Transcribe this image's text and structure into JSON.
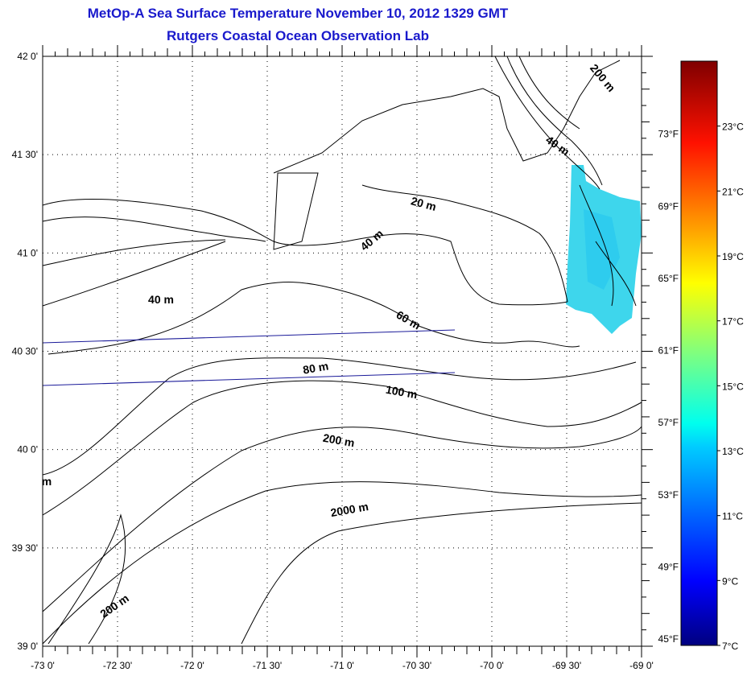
{
  "title": "MetOp-A Sea Surface Temperature November 10, 2012 1329 GMT",
  "subtitle": "Rutgers Coastal Ocean Observation Lab",
  "map": {
    "lon_range": [
      -73,
      -69
    ],
    "lat_range": [
      39,
      42
    ],
    "lon_labels": [
      "-73 0'",
      "-72 30'",
      "-72 0'",
      "-71 30'",
      "-71 0'",
      "-70 30'",
      "-70 0'",
      "-69 30'",
      "-69 0'"
    ],
    "lat_labels": [
      "39 0'",
      "39 30'",
      "40 0'",
      "40 30'",
      "41 0'",
      "41 30'",
      "42 0'"
    ],
    "contour_labels": [
      "200 m",
      "40 m",
      "20 m",
      "40 m",
      "40 m",
      "60 m",
      "80 m",
      "100 m",
      "200 m",
      "2000 m",
      "200 m",
      "m"
    ]
  },
  "colorbar": {
    "celsius_range": [
      7,
      25
    ],
    "celsius_labels": [
      "7°C",
      "9°C",
      "11°C",
      "13°C",
      "15°C",
      "17°C",
      "19°C",
      "21°C",
      "23°C"
    ],
    "fahrenheit_labels": [
      "45°F",
      "49°F",
      "53°F",
      "57°F",
      "61°F",
      "65°F",
      "69°F",
      "73°F"
    ]
  }
}
